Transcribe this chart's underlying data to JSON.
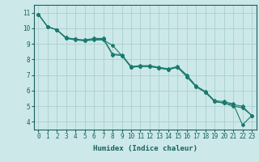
{
  "title": "",
  "xlabel": "Humidex (Indice chaleur)",
  "ylabel": "",
  "background_color": "#cce8e8",
  "grid_color": "#aacfcf",
  "line_color": "#1a7a6e",
  "x_values": [
    0,
    1,
    2,
    3,
    4,
    5,
    6,
    7,
    8,
    9,
    10,
    11,
    12,
    13,
    14,
    15,
    16,
    17,
    18,
    19,
    20,
    21,
    22,
    23
  ],
  "line1": [
    10.9,
    10.1,
    9.9,
    9.35,
    9.25,
    9.2,
    9.25,
    9.25,
    8.9,
    8.25,
    7.5,
    7.55,
    7.55,
    7.45,
    7.35,
    7.5,
    6.9,
    6.25,
    5.9,
    5.3,
    5.2,
    5.0,
    4.9,
    4.4
  ],
  "line2": [
    10.9,
    10.1,
    9.9,
    9.35,
    9.3,
    9.2,
    9.3,
    9.3,
    8.3,
    8.25,
    7.5,
    7.55,
    7.55,
    7.45,
    7.35,
    7.5,
    6.9,
    6.25,
    5.9,
    5.3,
    5.2,
    5.1,
    5.0,
    4.4
  ],
  "line3": [
    10.9,
    10.1,
    9.9,
    9.4,
    9.3,
    9.25,
    9.35,
    9.35,
    8.35,
    8.3,
    7.55,
    7.6,
    7.6,
    7.5,
    7.4,
    7.55,
    7.0,
    6.3,
    5.95,
    5.35,
    5.3,
    5.15,
    3.8,
    4.4
  ],
  "ylim": [
    3.5,
    11.5
  ],
  "xlim": [
    -0.5,
    23.5
  ],
  "yticks": [
    4,
    5,
    6,
    7,
    8,
    9,
    10,
    11
  ],
  "xticks": [
    0,
    1,
    2,
    3,
    4,
    5,
    6,
    7,
    8,
    9,
    10,
    11,
    12,
    13,
    14,
    15,
    16,
    17,
    18,
    19,
    20,
    21,
    22,
    23
  ],
  "tick_fontsize": 5.5,
  "xlabel_fontsize": 6.5,
  "marker": "D",
  "markersize": 2.0,
  "linewidth": 0.8
}
